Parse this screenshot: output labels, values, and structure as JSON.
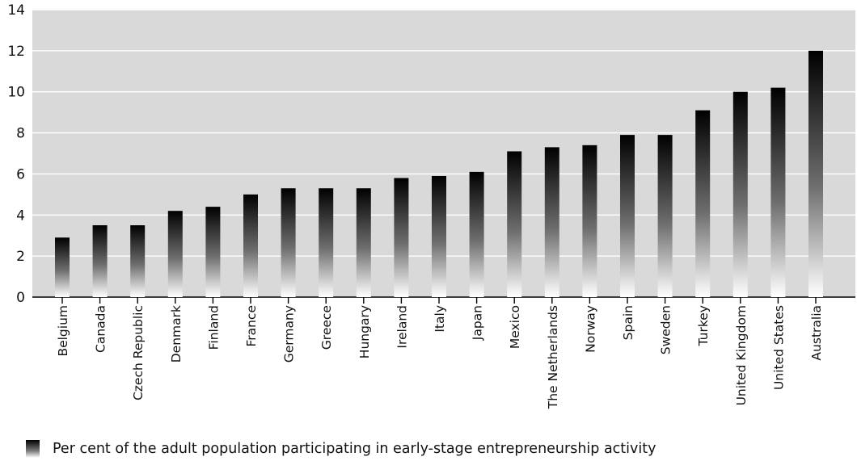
{
  "chart_data": {
    "type": "bar",
    "categories": [
      "Belgium",
      "Canada",
      "Czech Republic",
      "Denmark",
      "Finland",
      "France",
      "Germany",
      "Greece",
      "Hungary",
      "Ireland",
      "Italy",
      "Japan",
      "Mexico",
      "The Netherlands",
      "Norway",
      "Spain",
      "Sweden",
      "Turkey",
      "United Kingdom",
      "United States",
      "Australia"
    ],
    "series": [
      {
        "name": "Per cent of the adult population participating in early-stage entrepreneurship activity",
        "values": [
          2.9,
          3.5,
          3.5,
          4.2,
          4.4,
          5.0,
          5.3,
          5.3,
          5.3,
          5.8,
          5.9,
          6.1,
          7.1,
          7.3,
          7.4,
          7.9,
          7.9,
          9.1,
          10.0,
          10.2,
          12.0
        ]
      }
    ],
    "yticks": [
      "0",
      "2",
      "4",
      "6",
      "8",
      "10",
      "12",
      "14"
    ],
    "ylim": [
      0,
      14
    ],
    "grid": true,
    "legend_position": "bottom-left",
    "colors": {
      "plot_background": "#d9d9d9",
      "gridline": "#ffffff",
      "bar_top": "#000000",
      "bar_bottom": "#ffffff"
    }
  },
  "legend": {
    "label": "Per cent of the adult population participating in early-stage entrepreneurship activity"
  }
}
